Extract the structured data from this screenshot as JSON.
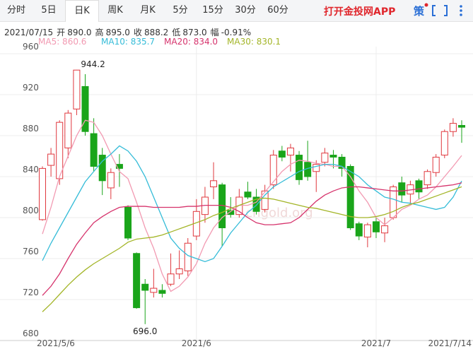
{
  "tabs": [
    "分时",
    "5日",
    "日K",
    "周K",
    "月K",
    "5分",
    "15分",
    "30分",
    "60分"
  ],
  "selected_tab": 2,
  "app_link": "打开金投网APP",
  "strategy_icon": "策",
  "quote": {
    "date": "2021/07/15",
    "items": [
      {
        "label": "开",
        "value": "890.0"
      },
      {
        "label": "高",
        "value": "895.0"
      },
      {
        "label": "收",
        "value": "888.2"
      },
      {
        "label": "低",
        "value": "873.0"
      },
      {
        "label": "幅",
        "value": "-0.91%"
      }
    ]
  },
  "chart_data": {
    "type": "candlestick",
    "watermark": "cngold.org",
    "categories": [
      "2021/5/6",
      null,
      null,
      null,
      null,
      null,
      null,
      null,
      null,
      null,
      null,
      null,
      null,
      null,
      null,
      null,
      null,
      null,
      "2021/6",
      null,
      null,
      null,
      null,
      null,
      null,
      null,
      null,
      null,
      null,
      null,
      null,
      null,
      null,
      null,
      null,
      null,
      null,
      null,
      null,
      "2021/7",
      null,
      null,
      null,
      null,
      null,
      null,
      null,
      null,
      "2021/7/14",
      null
    ],
    "open": [
      798,
      851,
      838,
      868,
      906,
      928,
      882,
      861,
      829,
      852,
      810,
      765,
      735,
      727,
      729,
      735,
      745,
      748,
      782,
      803,
      830,
      832,
      807,
      803,
      825,
      820,
      808,
      832,
      865,
      861,
      861,
      854,
      845,
      854,
      861,
      859,
      850,
      794,
      781,
      796,
      785,
      800,
      834,
      823,
      836,
      832,
      844,
      861,
      884,
      890
    ],
    "high": [
      850,
      868,
      895,
      905,
      944.2,
      940,
      897,
      868,
      848,
      862,
      812,
      766,
      740,
      750,
      735,
      765,
      768,
      780,
      818,
      830,
      854,
      834,
      820,
      828,
      835,
      828,
      832,
      866,
      870,
      872,
      865,
      875,
      856,
      868,
      866,
      862,
      852,
      796,
      795,
      800,
      800,
      832,
      840,
      836,
      838,
      847,
      862,
      886,
      897,
      895
    ],
    "low": [
      797,
      840,
      832,
      858,
      900,
      880,
      845,
      822,
      818,
      830,
      778,
      711,
      696,
      722,
      722,
      733,
      740,
      743,
      778,
      795,
      818,
      772,
      800,
      800,
      818,
      803,
      805,
      828,
      855,
      845,
      832,
      836,
      825,
      850,
      848,
      840,
      788,
      778,
      771,
      780,
      776,
      798,
      815,
      813,
      818,
      828,
      840,
      858,
      879,
      873
    ],
    "close": [
      848,
      862,
      893,
      902,
      944,
      884,
      850,
      836,
      844,
      848,
      780,
      712,
      729,
      731,
      726,
      745,
      750,
      775,
      806,
      820,
      836,
      790,
      803,
      820,
      820,
      806,
      826,
      861,
      859,
      868,
      837,
      840,
      852,
      863,
      859,
      848,
      790,
      782,
      793,
      786,
      792,
      830,
      822,
      832,
      825,
      845,
      859,
      884,
      892,
      888.2
    ],
    "up_color": "#e0383e",
    "down_color": "#1aa51a",
    "annotations": [
      {
        "text": "944.2",
        "value": 944.2,
        "category_index": 4
      },
      {
        "text": "696.0",
        "value": 696,
        "category_index": 12
      }
    ],
    "series": [
      {
        "name": "MA5: 860.6",
        "color": "#f29ab2",
        "values": [
          784,
          810,
          840,
          860,
          880,
          895,
          893,
          880,
          862,
          845,
          838,
          815,
          790,
          770,
          745,
          728,
          733,
          742,
          755,
          775,
          790,
          800,
          806,
          812,
          812,
          815,
          825,
          835,
          845,
          852,
          856,
          855,
          853,
          852,
          850,
          850,
          840,
          826,
          815,
          800,
          793,
          800,
          808,
          812,
          818,
          822,
          830,
          840,
          850,
          860.6
        ]
      },
      {
        "name": "MA10: 835.7",
        "color": "#35bcd8",
        "values": [
          758,
          775,
          790,
          805,
          820,
          835,
          845,
          855,
          862,
          870,
          865,
          855,
          840,
          820,
          800,
          780,
          770,
          763,
          760,
          757,
          760,
          772,
          785,
          795,
          805,
          812,
          822,
          830,
          835,
          840,
          845,
          848,
          850,
          852,
          852,
          850,
          845,
          840,
          832,
          826,
          820,
          818,
          815,
          814,
          812,
          810,
          808,
          810,
          820,
          835.7
        ]
      },
      {
        "name": "MA20: 834.0",
        "color": "#d6336c",
        "values": [
          724,
          733,
          745,
          760,
          774,
          785,
          795,
          801,
          806,
          810,
          811,
          811,
          811,
          810,
          810,
          810,
          810,
          811,
          811,
          812,
          812,
          812,
          810,
          806,
          800,
          795,
          793,
          793,
          794,
          795,
          800,
          808,
          816,
          822,
          826,
          829,
          830,
          830,
          829,
          828,
          827,
          826,
          826,
          827,
          828,
          829,
          830,
          831,
          832,
          834.0
        ]
      },
      {
        "name": "MA30: 830.1",
        "color": "#a3b527",
        "values": [
          708,
          716,
          725,
          734,
          742,
          749,
          755,
          760,
          765,
          770,
          776,
          779,
          780,
          781,
          783,
          786,
          789,
          792,
          795,
          798,
          802,
          805,
          809,
          812,
          815,
          818,
          819,
          818,
          816,
          814,
          812,
          810,
          809,
          807,
          805,
          803,
          801,
          800,
          800,
          801,
          803,
          806,
          810,
          813,
          815,
          818,
          821,
          824,
          827,
          830.1
        ]
      }
    ],
    "ylim": [
      680,
      960
    ],
    "yticks": [
      680,
      720,
      760,
      800,
      840,
      880,
      920,
      960
    ],
    "grid": true
  }
}
